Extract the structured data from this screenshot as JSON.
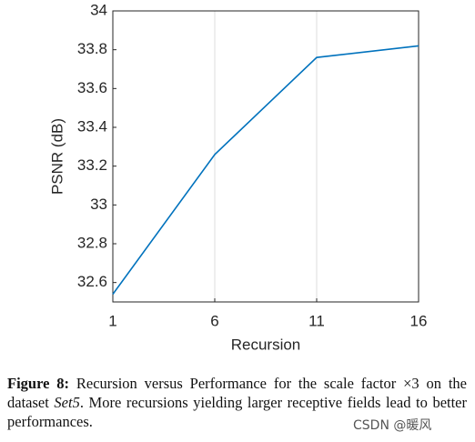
{
  "chart_data": {
    "type": "line",
    "xlabel": "Recursion",
    "ylabel": "PSNR (dB)",
    "x": [
      1,
      6,
      11,
      16
    ],
    "series": [
      {
        "color": "#0072bd",
        "values": [
          32.54,
          33.26,
          33.76,
          33.82
        ]
      }
    ],
    "xlim": [
      1,
      16
    ],
    "xticks": [
      1,
      6,
      11,
      16
    ],
    "ylim": [
      32.5,
      34
    ],
    "yticks": [
      32.6,
      32.8,
      33,
      33.2,
      33.4,
      33.6,
      33.8,
      34
    ],
    "grid": "x"
  },
  "caption": {
    "label": "Figure 8:",
    "text_before": "Recursion versus Performance for the scale factor ×3 on the dataset",
    "italic": "Set5",
    "text_after": ".  More recursions yielding larger receptive fields lead to better performances."
  },
  "watermark": "CSDN @暖风"
}
